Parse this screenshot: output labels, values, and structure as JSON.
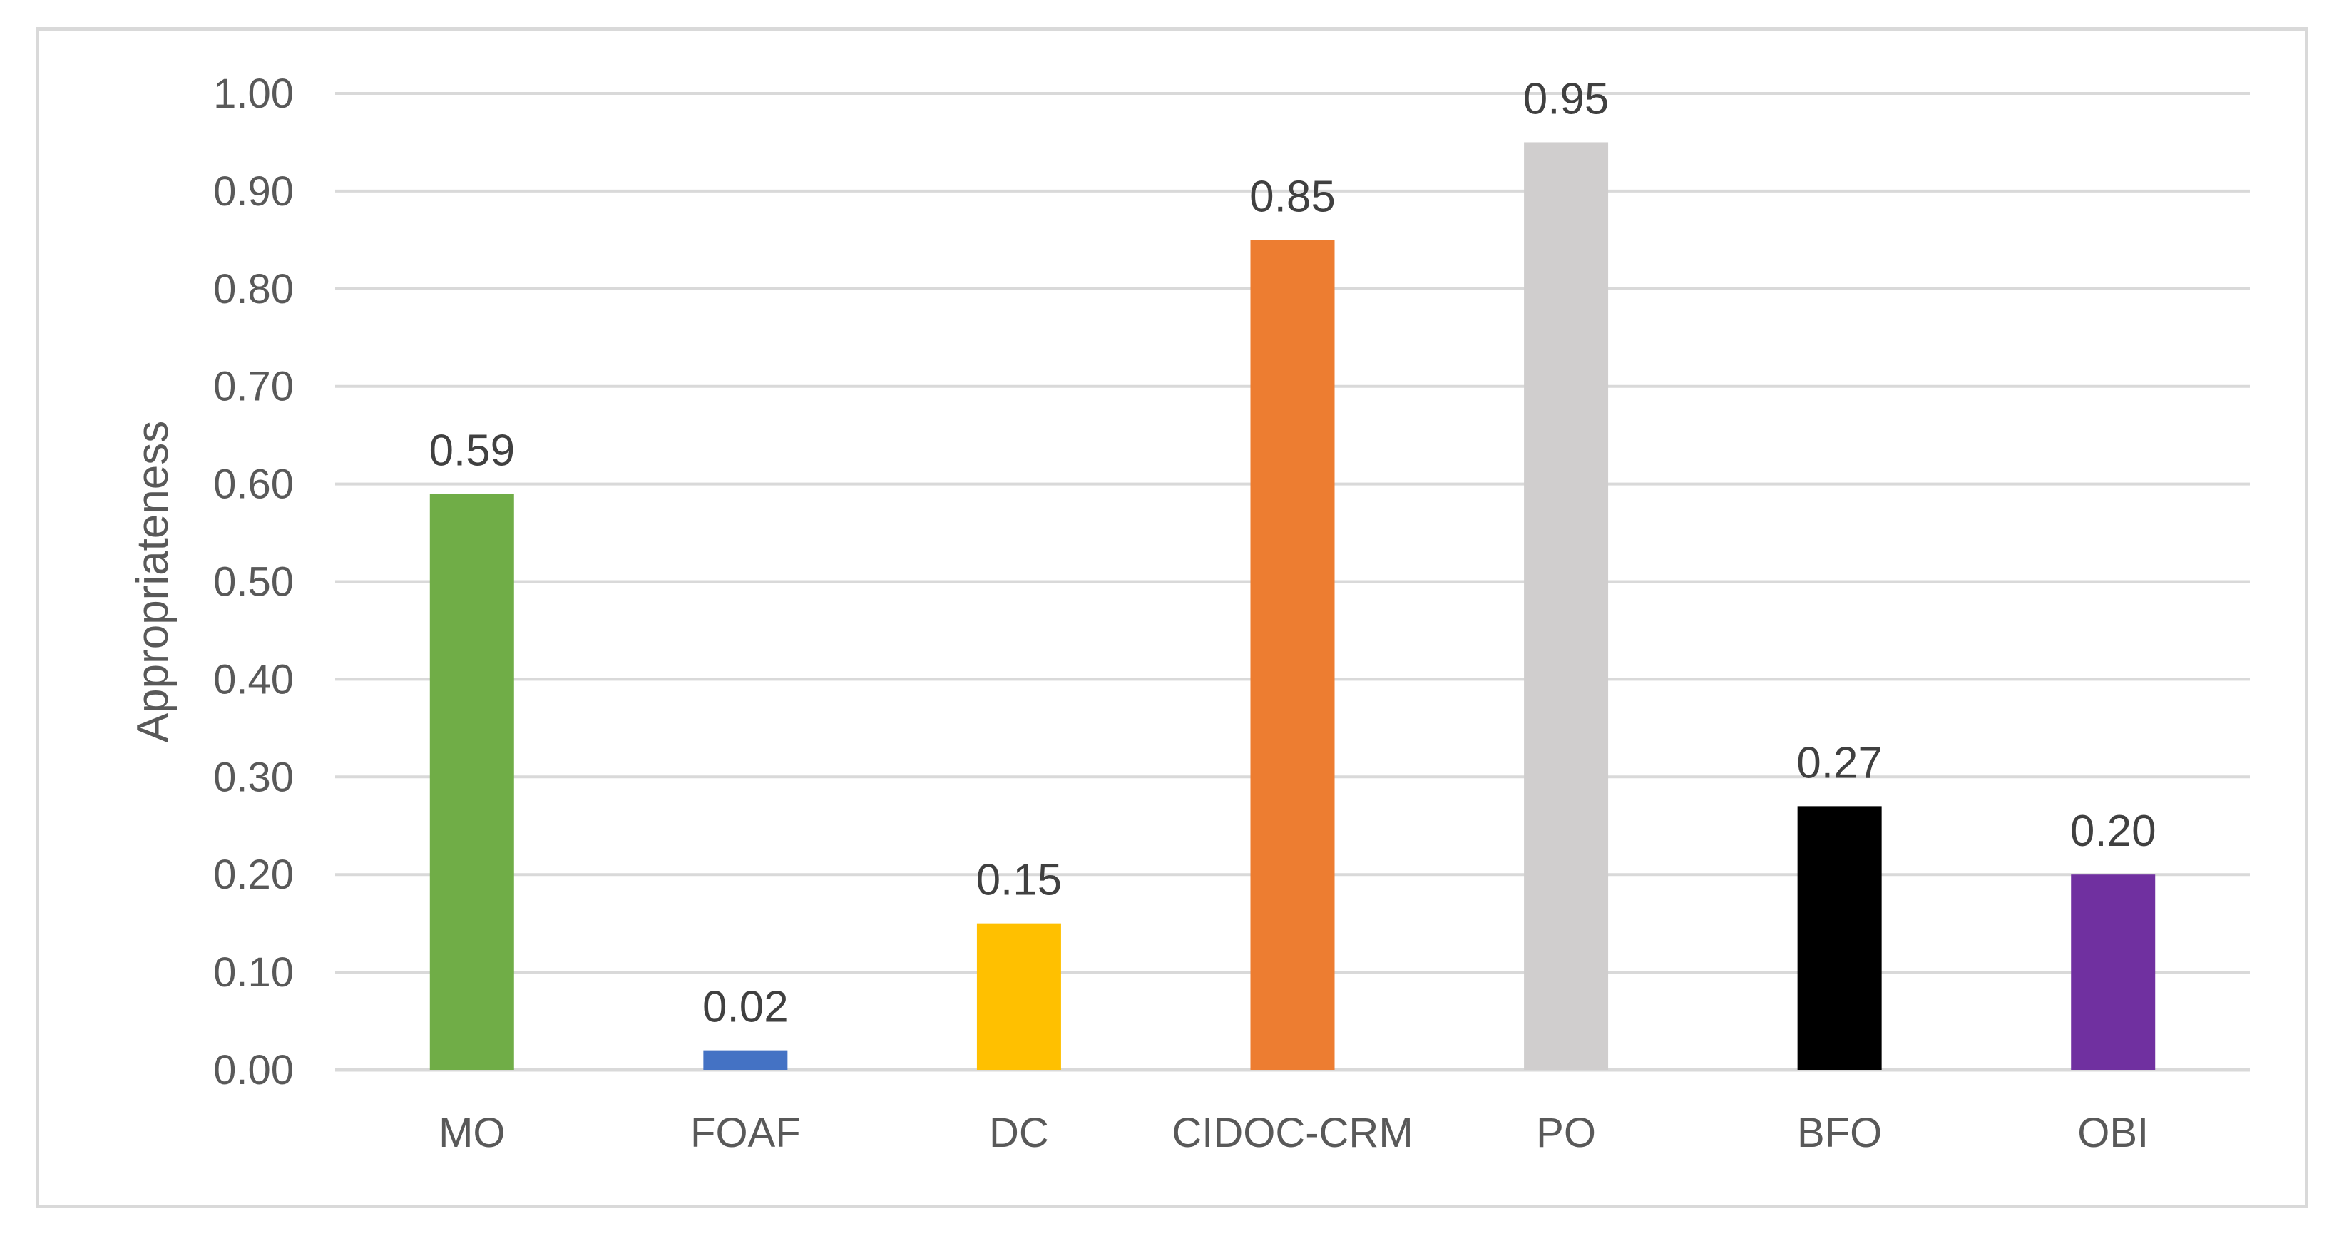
{
  "chart_data": {
    "type": "bar",
    "categories": [
      "MO",
      "FOAF",
      "DC",
      "CIDOC-CRM",
      "PO",
      "BFO",
      "OBI"
    ],
    "values": [
      0.59,
      0.02,
      0.15,
      0.85,
      0.95,
      0.27,
      0.2
    ],
    "data_labels": [
      "0.59",
      "0.02",
      "0.15",
      "0.85",
      "0.95",
      "0.27",
      "0.20"
    ],
    "bar_colors": [
      "#70ad47",
      "#4472c4",
      "#ffc000",
      "#ed7d31",
      "#d0cece",
      "#000000",
      "#7030a0"
    ],
    "title": "",
    "xlabel": "",
    "ylabel": "Appropriateness",
    "ylim": [
      0,
      1
    ],
    "yticks": [
      "0.00",
      "0.10",
      "0.20",
      "0.30",
      "0.40",
      "0.50",
      "0.60",
      "0.70",
      "0.80",
      "0.90",
      "1.00"
    ],
    "grid": true,
    "grid_color": "#d9d9d9",
    "legend": "none"
  }
}
